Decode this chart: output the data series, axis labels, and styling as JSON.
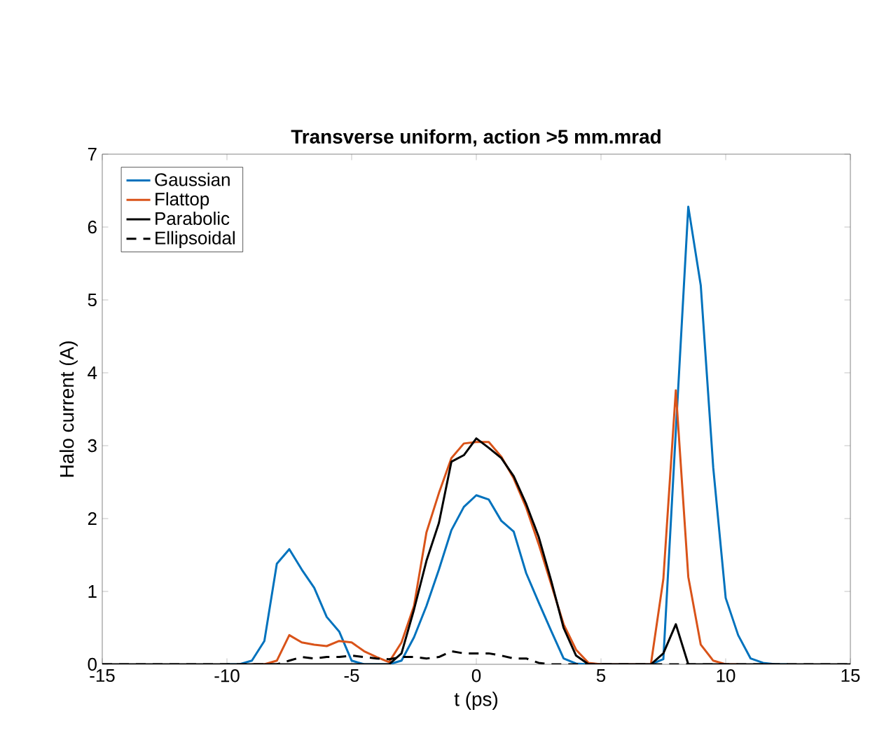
{
  "chart_data": {
    "type": "line",
    "title": "Transverse uniform, action >5 mm.mrad",
    "xlabel": "t (ps)",
    "ylabel": "Halo current (A)",
    "x": [
      -15,
      -14.5,
      -14,
      -13.5,
      -13,
      -12.5,
      -12,
      -11.5,
      -11,
      -10.5,
      -10,
      -9.5,
      -9,
      -8.5,
      -8,
      -7.5,
      -7,
      -6.5,
      -6,
      -5.5,
      -5,
      -4.5,
      -4,
      -3.5,
      -3,
      -2.5,
      -2,
      -1.5,
      -1,
      -0.5,
      0,
      0.5,
      1,
      1.5,
      2,
      2.5,
      3,
      3.5,
      4,
      4.5,
      5,
      5.5,
      6,
      6.5,
      7,
      7.5,
      8,
      8.5,
      9,
      9.5,
      10,
      10.5,
      11,
      11.5,
      12,
      12.5,
      13,
      13.5,
      14,
      14.5,
      15
    ],
    "series": [
      {
        "name": "Gaussian",
        "color": "#0072bd",
        "line_style": "solid",
        "values": [
          null,
          null,
          null,
          null,
          null,
          null,
          null,
          null,
          null,
          null,
          0,
          0,
          0.05,
          0.32,
          1.38,
          1.58,
          1.3,
          1.05,
          0.65,
          0.45,
          0.05,
          0,
          0,
          0,
          0.05,
          0.37,
          0.8,
          1.3,
          1.84,
          2.16,
          2.32,
          2.26,
          1.97,
          1.82,
          1.25,
          0.85,
          0.46,
          0.08,
          0.01,
          0,
          0,
          0,
          0,
          0,
          0,
          0.07,
          3.2,
          6.28,
          5.2,
          2.7,
          0.91,
          0.4,
          0.08,
          0.02,
          0,
          0,
          null,
          null,
          null,
          null,
          null
        ]
      },
      {
        "name": "Flattop",
        "color": "#d95319",
        "line_style": "solid",
        "values": [
          null,
          null,
          null,
          null,
          null,
          null,
          null,
          null,
          null,
          null,
          null,
          null,
          0,
          0,
          0.05,
          0.4,
          0.3,
          0.27,
          0.25,
          0.32,
          0.3,
          0.18,
          0.1,
          0.03,
          0.3,
          0.8,
          1.81,
          2.35,
          2.83,
          3.03,
          3.05,
          3.05,
          2.85,
          2.55,
          2.15,
          1.65,
          1.1,
          0.55,
          0.2,
          0.02,
          0,
          0,
          0,
          0,
          0,
          1.17,
          3.76,
          1.2,
          0.27,
          0.05,
          0,
          0,
          null,
          null,
          null,
          null,
          null,
          null,
          null,
          null,
          null
        ]
      },
      {
        "name": "Parabolic",
        "color": "#000000",
        "line_style": "solid",
        "values": [
          0,
          0,
          0,
          0,
          0,
          0,
          0,
          0,
          0,
          0,
          0,
          0,
          0,
          0,
          0,
          0,
          0,
          0,
          0,
          0,
          0,
          0,
          0,
          0,
          0.15,
          0.75,
          1.42,
          1.94,
          2.78,
          2.87,
          3.1,
          2.97,
          2.83,
          2.58,
          2.2,
          1.75,
          1.15,
          0.5,
          0.12,
          0,
          0,
          0,
          0,
          0,
          0,
          0.15,
          0.55,
          0,
          0,
          0,
          0,
          0,
          0,
          0,
          0,
          0,
          0,
          0,
          0,
          0,
          0
        ]
      },
      {
        "name": "Ellipsoidal",
        "color": "#000000",
        "line_style": "dashed",
        "values": [
          0,
          0,
          0,
          0,
          0,
          0,
          0,
          0,
          0,
          0,
          0,
          0,
          0,
          0,
          0,
          0.05,
          0.1,
          0.08,
          0.1,
          0.1,
          0.12,
          0.1,
          0.08,
          0.07,
          0.1,
          0.1,
          0.08,
          0.1,
          0.18,
          0.15,
          0.15,
          0.15,
          0.12,
          0.08,
          0.08,
          0.02,
          0,
          0,
          0,
          0,
          0,
          0,
          0,
          0,
          0,
          0,
          0,
          0,
          0,
          0,
          0,
          0,
          0,
          0,
          0,
          0,
          0,
          0,
          0,
          0,
          0
        ]
      }
    ],
    "xlim": [
      -15,
      15
    ],
    "ylim": [
      0,
      7
    ],
    "xticks": [
      -15,
      -10,
      -5,
      0,
      5,
      10,
      15
    ],
    "yticks": [
      0,
      1,
      2,
      3,
      4,
      5,
      6,
      7
    ],
    "legend": "top left",
    "marker": "none",
    "grid": false
  }
}
